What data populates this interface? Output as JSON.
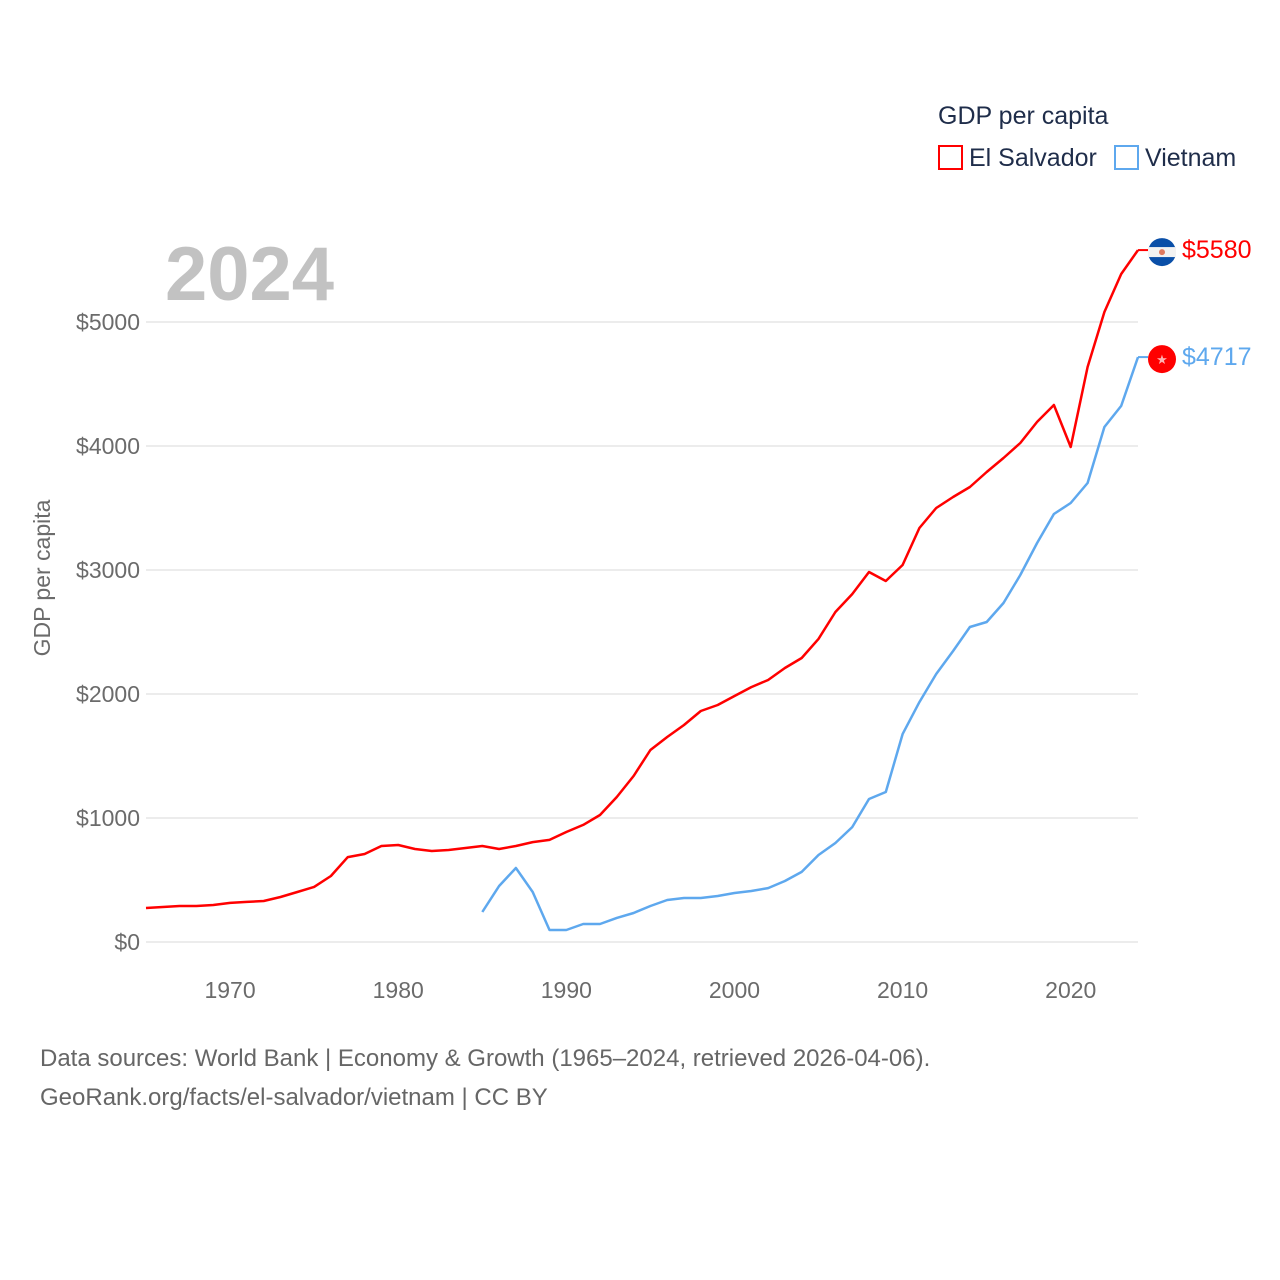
{
  "chart_data": {
    "type": "line",
    "title": "GDP per capita",
    "year_label": "2024",
    "xlabel": "",
    "ylabel": "GDP per capita",
    "xlim": [
      1965,
      2024
    ],
    "ylim": [
      0,
      5600
    ],
    "x_ticks": [
      1970,
      1980,
      1990,
      2000,
      2010,
      2020
    ],
    "x_tick_labels": [
      "1970",
      "1980",
      "1990",
      "2000",
      "2010",
      "2020"
    ],
    "y_ticks": [
      0,
      1000,
      2000,
      3000,
      4000,
      5000
    ],
    "y_tick_labels": [
      "$0",
      "$1000",
      "$2000",
      "$3000",
      "$4000",
      "$5000"
    ],
    "grid": true,
    "legend_position": "top-right",
    "series": [
      {
        "name": "El Salvador",
        "color": "#ff0000",
        "end_label": "$5580",
        "flag": "el-salvador-flag",
        "start_year": 1965,
        "values": [
          274,
          282,
          290,
          290,
          298,
          315,
          323,
          331,
          363,
          403,
          444,
          532,
          685,
          710,
          774,
          782,
          750,
          734,
          742,
          758,
          774,
          750,
          774,
          806,
          823,
          887,
          944,
          1024,
          1169,
          1339,
          1548,
          1653,
          1750,
          1863,
          1911,
          1984,
          2056,
          2113,
          2210,
          2290,
          2444,
          2661,
          2806,
          2984,
          2911,
          3040,
          3339,
          3500,
          3589,
          3669,
          3790,
          3903,
          4024,
          4194,
          4331,
          3992,
          4637,
          5081,
          5387,
          5580
        ]
      },
      {
        "name": "Vietnam",
        "color": "#5ea8ee",
        "end_label": "$4717",
        "flag": "vietnam-flag",
        "start_year": 1985,
        "values": [
          242,
          452,
          597,
          403,
          97,
          97,
          145,
          145,
          194,
          234,
          290,
          339,
          355,
          355,
          371,
          395,
          411,
          435,
          492,
          565,
          702,
          798,
          927,
          1153,
          1210,
          1677,
          1935,
          2161,
          2347,
          2540,
          2581,
          2734,
          2960,
          3218,
          3452,
          3540,
          3702,
          4153,
          4323,
          4717
        ]
      }
    ]
  },
  "footer": {
    "line1": "Data sources: World Bank | Economy & Growth (1965–2024, retrieved 2026-04-06).",
    "line2": "GeoRank.org/facts/el-salvador/vietnam | CC BY"
  }
}
